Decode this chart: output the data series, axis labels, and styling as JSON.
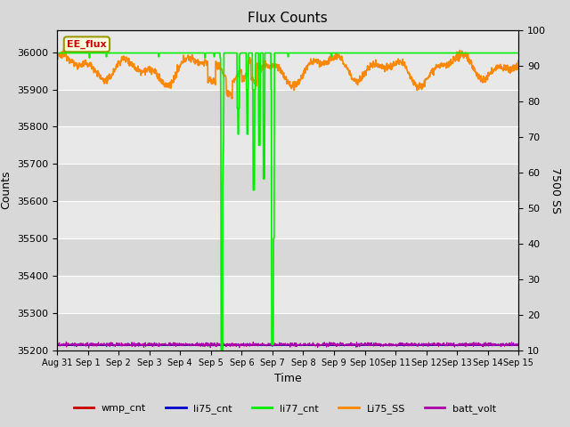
{
  "title": "Flux Counts",
  "xlabel": "Time",
  "ylabel_left": "Counts",
  "ylabel_right": "7500 SS",
  "annotation_text": "EE_flux",
  "ylim_left": [
    35200,
    36060
  ],
  "ylim_right": [
    10,
    100
  ],
  "xtick_labels": [
    "Aug 31",
    "Sep 1",
    "Sep 2",
    "Sep 3",
    "Sep 4",
    "Sep 5",
    "Sep 6",
    "Sep 7",
    "Sep 8",
    "Sep 9",
    "Sep 10",
    "Sep 11",
    "Sep 12",
    "Sep 13",
    "Sep 14",
    "Sep 15"
  ],
  "ytick_left": [
    35200,
    35300,
    35400,
    35500,
    35600,
    35700,
    35800,
    35900,
    36000
  ],
  "ytick_right": [
    10,
    20,
    30,
    40,
    50,
    60,
    70,
    80,
    90,
    100
  ],
  "background_color": "#d8d8d8",
  "plot_bg_color_dark": "#d0d0d0",
  "plot_bg_color_light": "#e8e8e8",
  "legend_entries": [
    "wmp_cnt",
    "li75_cnt",
    "li77_cnt",
    "Li75_SS",
    "batt_volt"
  ],
  "legend_colors": [
    "#cc0000",
    "#0000cc",
    "#00ee00",
    "#ff8800",
    "#aa00aa"
  ],
  "li77_cnt_color": "#00ee00",
  "li75_ss_color": "#ff8800",
  "batt_volt_color": "#aa00aa",
  "wmp_cnt_color": "#cc0000",
  "li75_cnt_color": "#0000cc",
  "figsize": [
    6.4,
    4.8
  ],
  "dpi": 100
}
